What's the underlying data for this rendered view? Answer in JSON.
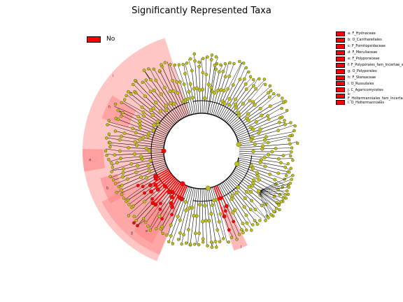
{
  "title": "Significantly Represented Taxa",
  "legend": {
    "label": "No",
    "color": "#ff0000"
  },
  "clades": [
    {
      "letter": "a",
      "name": "F_Hydnaceae"
    },
    {
      "letter": "b",
      "name": "O_Cantharellales"
    },
    {
      "letter": "c",
      "name": "F_Fomitopsidaceae"
    },
    {
      "letter": "d",
      "name": "F_Meruliaceae"
    },
    {
      "letter": "e",
      "name": "F_Polyporaceae"
    },
    {
      "letter": "f",
      "name": "F_Polyporales_fam_Incertae_sedis"
    },
    {
      "letter": "g",
      "name": "O_Polyporales"
    },
    {
      "letter": "h",
      "name": "F_Stereaceae"
    },
    {
      "letter": "i",
      "name": "O_Russulales"
    },
    {
      "letter": "j",
      "name": "C_Agaricomycetes"
    },
    {
      "letter": "k",
      "name": "F_Holtermanniales_fam_Incertae_sedis"
    },
    {
      "letter": "l",
      "name": "O_Holtermanniales"
    }
  ],
  "colors": {
    "significant": "#ff0000",
    "node": "#bfbf0f",
    "edge": "#000000",
    "highlight_light": "#ffb3b3",
    "highlight_mid": "#ff8080"
  }
}
